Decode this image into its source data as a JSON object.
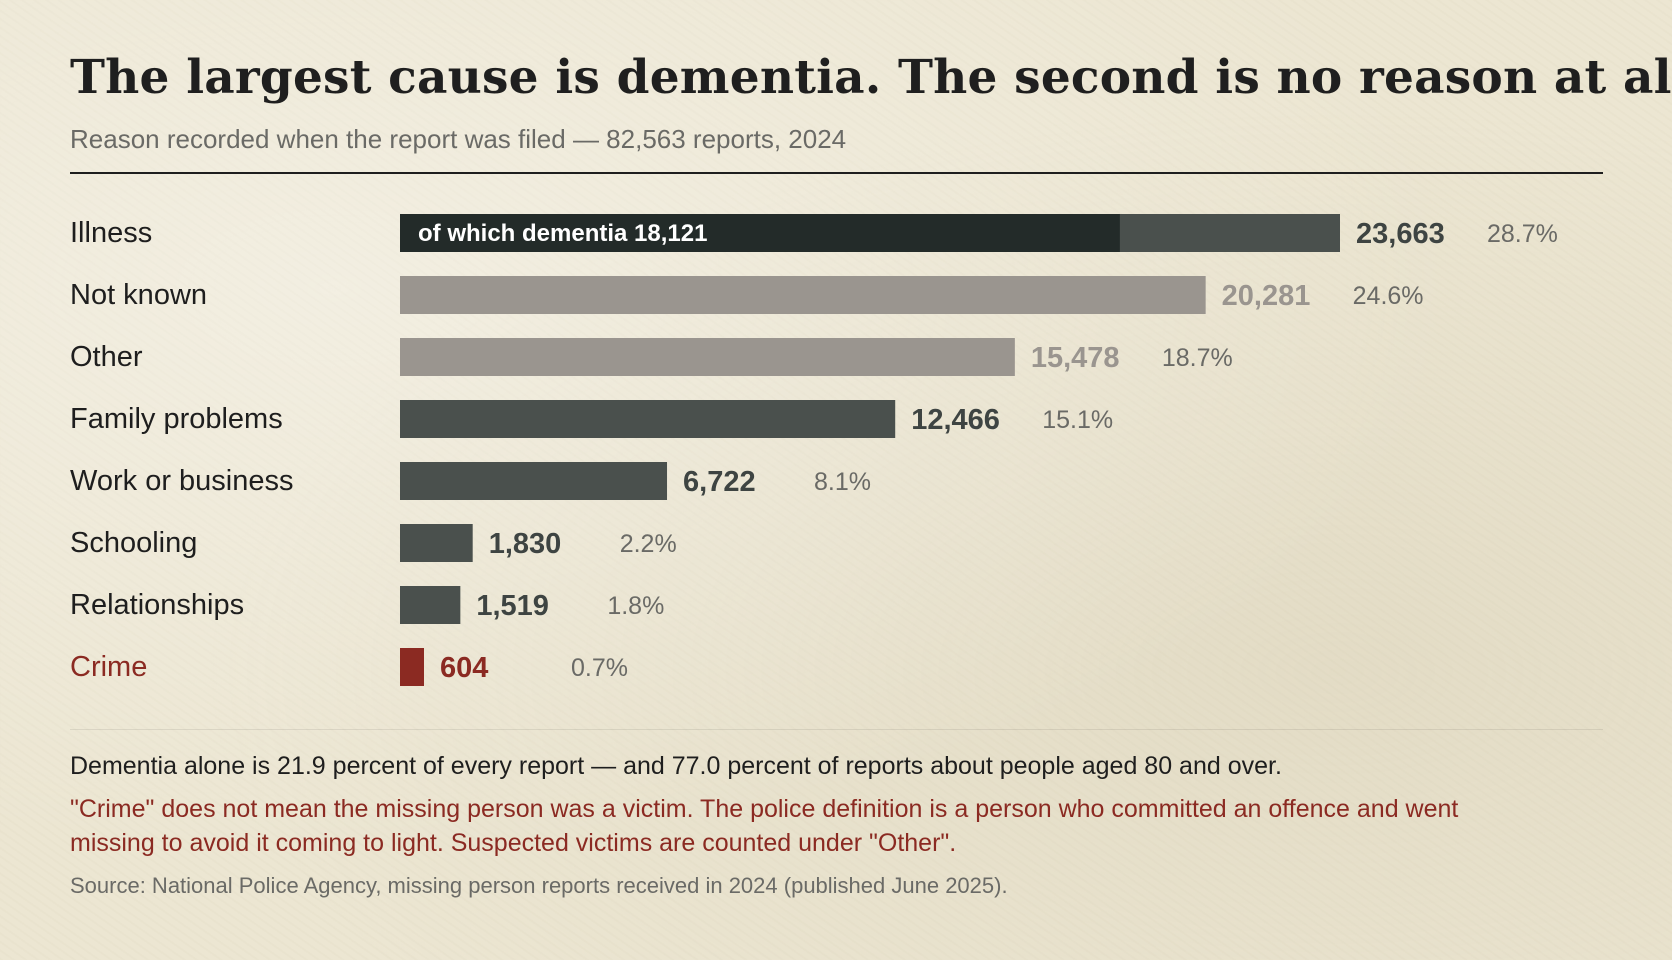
{
  "title": "The largest cause is dementia. The second is no reason at all",
  "subtitle": "Reason recorded when the report was filed — 82,563 reports, 2024",
  "chart_data": {
    "type": "bar",
    "orientation": "horizontal",
    "categories": [
      "Illness",
      "Not known",
      "Other",
      "Family problems",
      "Work or business",
      "Schooling",
      "Relationships",
      "Crime"
    ],
    "values": [
      23663,
      20281,
      15478,
      12466,
      6722,
      1830,
      1519,
      604
    ],
    "value_labels": [
      "23,663",
      "20,281",
      "15,478",
      "12,466",
      "6,722",
      "1,830",
      "1,519",
      "604"
    ],
    "percent_labels": [
      "28.7%",
      "24.6%",
      "18.7%",
      "15.1%",
      "8.1%",
      "2.2%",
      "1.8%",
      "0.7%"
    ],
    "sub_segment": {
      "category": "Illness",
      "value": 18121,
      "label": "of which dementia  18,121"
    },
    "colors": {
      "default": "#4a504d",
      "dementia": "#232b29",
      "unspecified": "#9a958f",
      "crime": "#8b2a22",
      "crime_text": "#8b2a22",
      "percent_text": "#6a6a66"
    },
    "bar_styles": [
      "default",
      "unspecified",
      "unspecified",
      "default",
      "default",
      "default",
      "default",
      "crime"
    ]
  },
  "notes": {
    "main": "Dementia alone is 21.9 percent of every report — and 77.0 percent of reports about people aged 80 and over.",
    "crime": "\"Crime\" does not mean the missing person was a victim. The police definition is a person who committed an offence and went missing to avoid it coming to light. Suspected victims are counted under \"Other\".",
    "source": "Source: National Police Agency, missing person reports received in 2024 (published June 2025)."
  }
}
